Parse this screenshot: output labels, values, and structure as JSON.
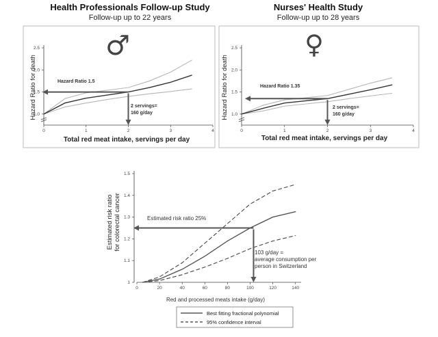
{
  "charts": [
    {
      "title": "Health Professionals Follow-up Study",
      "subtitle": "Follow-up up to 22 years",
      "symbol": "♂",
      "xlabel": "Total red meat intake, servings per day",
      "ylabel": "Hazard Ratio for death",
      "annotation_label": "Hazard Ratio 1.5",
      "note_lines": [
        "2 servings=",
        "160 g/day"
      ]
    },
    {
      "title": "Nurses' Health Study",
      "subtitle": "Follow-up up to 28 years",
      "symbol": "♀",
      "xlabel": "Total red meat intake, servings per day",
      "ylabel": "Hazard Ratio for death",
      "annotation_label": "Hazard Ratio 1.35",
      "note_lines": [
        "2 servings=",
        "160 g/day"
      ]
    },
    {
      "title": "",
      "xlabel": "Red and processed meats intake (g/day)",
      "ylabel_lines": [
        "Estimated risk ratio",
        "for colorectal cancer"
      ],
      "annotation_label": "Estimated risk ratio 25%",
      "note_lines": [
        "103 g/day =",
        "average consumption per",
        "person in Switzerland"
      ],
      "legend": [
        "Best fitting fractional polynomial",
        "95% confidence interval"
      ]
    }
  ],
  "chart_data": [
    {
      "type": "line",
      "x_ticks": [
        "0",
        "1",
        "2",
        "3",
        "4"
      ],
      "y_ticks": [
        "1.0",
        "1.5",
        "2.0",
        "2.5"
      ],
      "xlim": [
        0,
        4
      ],
      "ylim": [
        0.75,
        2.5
      ],
      "series": [
        {
          "x": [
            0,
            0.5,
            1,
            1.5,
            2,
            2.5,
            3,
            3.5
          ],
          "y": [
            1.0,
            1.25,
            1.36,
            1.43,
            1.5,
            1.6,
            1.72,
            1.88
          ]
        },
        {
          "x": [
            0,
            0.5,
            1,
            1.5,
            2,
            2.5,
            3,
            3.5
          ],
          "y": [
            1.0,
            1.35,
            1.48,
            1.54,
            1.6,
            1.75,
            1.95,
            2.22
          ]
        },
        {
          "x": [
            0,
            0.5,
            1,
            1.5,
            2,
            2.5,
            3,
            3.5
          ],
          "y": [
            1.0,
            1.16,
            1.25,
            1.33,
            1.4,
            1.46,
            1.51,
            1.57
          ]
        }
      ],
      "reference": {
        "x": 2,
        "y": 1.5
      },
      "grid": false
    },
    {
      "type": "line",
      "x_ticks": [
        "0",
        "1",
        "2",
        "3",
        "4"
      ],
      "y_ticks": [
        "1.0",
        "1.5",
        "2.0",
        "2.5"
      ],
      "xlim": [
        0,
        4
      ],
      "ylim": [
        0.75,
        2.5
      ],
      "series": [
        {
          "x": [
            0,
            0.5,
            1,
            1.5,
            2,
            2.5,
            3,
            3.5
          ],
          "y": [
            1.0,
            1.13,
            1.25,
            1.3,
            1.35,
            1.45,
            1.55,
            1.66
          ]
        },
        {
          "x": [
            0,
            0.5,
            1,
            1.5,
            2,
            2.5,
            3,
            3.5
          ],
          "y": [
            1.0,
            1.2,
            1.32,
            1.37,
            1.42,
            1.56,
            1.7,
            1.82
          ]
        },
        {
          "x": [
            0,
            0.5,
            1,
            1.5,
            2,
            2.5,
            3,
            3.5
          ],
          "y": [
            1.0,
            1.07,
            1.18,
            1.23,
            1.28,
            1.35,
            1.41,
            1.47
          ]
        }
      ],
      "reference": {
        "x": 2,
        "y": 1.35
      },
      "grid": false
    },
    {
      "type": "line",
      "x_ticks": [
        "0",
        "20",
        "40",
        "60",
        "80",
        "100",
        "120",
        "140"
      ],
      "y_ticks": [
        "1",
        "1.1",
        "1.2",
        "1.3",
        "1.4",
        "1.5"
      ],
      "xlim": [
        0,
        145
      ],
      "ylim": [
        1.0,
        1.5
      ],
      "series": [
        {
          "name": "Best fitting fractional polynomial",
          "style": "solid",
          "x": [
            5,
            20,
            40,
            60,
            80,
            100,
            120,
            140
          ],
          "y": [
            1.0,
            1.015,
            1.06,
            1.12,
            1.19,
            1.25,
            1.3,
            1.325
          ]
        },
        {
          "name": "95% confidence interval",
          "style": "dashed",
          "x": [
            5,
            20,
            40,
            60,
            80,
            100,
            120,
            140
          ],
          "y": [
            1.0,
            1.025,
            1.09,
            1.18,
            1.27,
            1.36,
            1.42,
            1.45
          ]
        },
        {
          "name": "95% confidence interval",
          "style": "dashed",
          "x": [
            5,
            20,
            40,
            60,
            80,
            100,
            120,
            140
          ],
          "y": [
            1.0,
            1.008,
            1.035,
            1.07,
            1.11,
            1.155,
            1.19,
            1.215
          ]
        }
      ],
      "reference": {
        "x": 103,
        "y": 1.25
      },
      "legend_position": "bottom",
      "grid": false
    }
  ]
}
